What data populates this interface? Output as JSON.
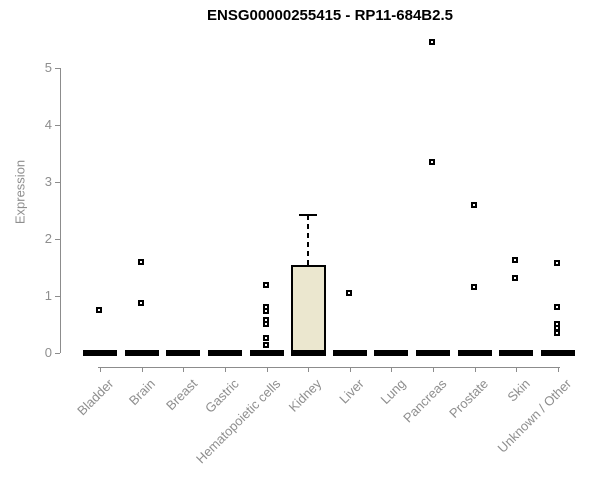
{
  "chart_data": {
    "type": "boxplot",
    "title": "ENSG00000255415 - RP11-684B2.5",
    "ylabel": "Expression",
    "yticks": [
      0,
      1,
      2,
      3,
      4,
      5
    ],
    "ylim": [
      0,
      5.5
    ],
    "grid": false,
    "legend": "none",
    "categories": [
      "Bladder",
      "Brain",
      "Breast",
      "Gastric",
      "Hematopoietic cells",
      "Kidney",
      "Liver",
      "Lung",
      "Pancreas",
      "Prostate",
      "Skin",
      "Unknown / Other"
    ],
    "boxes": [
      {
        "category": "Bladder",
        "q1": 0,
        "median": 0,
        "q3": 0,
        "whisker_low": 0,
        "whisker_high": 0,
        "outliers": [
          0.76
        ]
      },
      {
        "category": "Brain",
        "q1": 0,
        "median": 0,
        "q3": 0,
        "whisker_low": 0,
        "whisker_high": 0,
        "outliers": [
          1.6,
          0.88
        ]
      },
      {
        "category": "Breast",
        "q1": 0,
        "median": 0,
        "q3": 0,
        "whisker_low": 0,
        "whisker_high": 0,
        "outliers": []
      },
      {
        "category": "Gastric",
        "q1": 0,
        "median": 0,
        "q3": 0,
        "whisker_low": 0,
        "whisker_high": 0,
        "outliers": []
      },
      {
        "category": "Hematopoietic cells",
        "q1": 0,
        "median": 0,
        "q3": 0,
        "whisker_low": 0,
        "whisker_high": 0,
        "outliers": [
          1.19,
          0.81,
          0.74,
          0.58,
          0.51,
          0.26,
          0.14
        ]
      },
      {
        "category": "Kidney",
        "q1": 0,
        "median": 0,
        "q3": 1.55,
        "whisker_low": 0,
        "whisker_high": 2.42,
        "outliers": []
      },
      {
        "category": "Liver",
        "q1": 0,
        "median": 0,
        "q3": 0,
        "whisker_low": 0,
        "whisker_high": 0,
        "outliers": [
          1.05
        ]
      },
      {
        "category": "Lung",
        "q1": 0,
        "median": 0,
        "q3": 0,
        "whisker_low": 0,
        "whisker_high": 0,
        "outliers": []
      },
      {
        "category": "Pancreas",
        "q1": 0,
        "median": 0,
        "q3": 0,
        "whisker_low": 0,
        "whisker_high": 0,
        "outliers": [
          5.46,
          3.35
        ]
      },
      {
        "category": "Prostate",
        "q1": 0,
        "median": 0,
        "q3": 0,
        "whisker_low": 0,
        "whisker_high": 0,
        "outliers": [
          2.6,
          1.16
        ]
      },
      {
        "category": "Skin",
        "q1": 0,
        "median": 0,
        "q3": 0,
        "whisker_low": 0,
        "whisker_high": 0,
        "outliers": [
          1.63,
          1.32
        ]
      },
      {
        "category": "Unknown / Other",
        "q1": 0,
        "median": 0,
        "q3": 0,
        "whisker_low": 0,
        "whisker_high": 0,
        "outliers": [
          1.58,
          0.81,
          0.51,
          0.44,
          0.35
        ]
      }
    ],
    "colors": {
      "box_fill": "#ebe7cf",
      "box_border": "#000000",
      "bar": "#000000",
      "axis": "#8c8c8c",
      "tick_label": "#8e8e8e",
      "title": "#000000",
      "marker_fill": "#ffffff",
      "marker_border": "#000000"
    },
    "marker": "open-square"
  }
}
